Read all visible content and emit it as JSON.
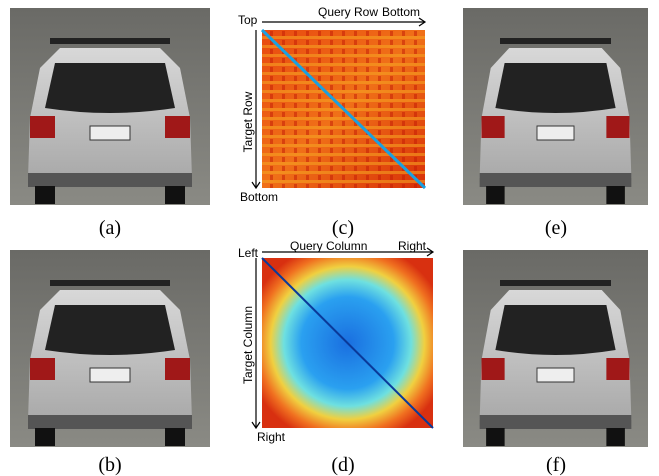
{
  "captions": [
    "(a)",
    "(b)",
    "(c)",
    "(d)",
    "(e)",
    "(f)"
  ],
  "row_matrix": {
    "start": "Top",
    "x_axis": "Query Row",
    "x_end": "Bottom",
    "y_axis": "Target Row",
    "y_end": "Bottom"
  },
  "column_matrix": {
    "start": "Left",
    "x_axis": "Query Column",
    "x_end": "Right",
    "y_axis": "Target Column",
    "y_end": "Right"
  }
}
